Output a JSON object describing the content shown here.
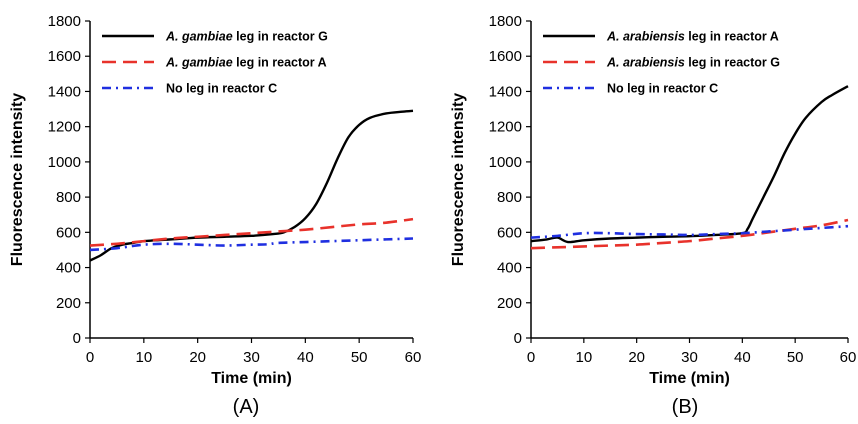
{
  "chart_data": [
    {
      "type": "line",
      "panel_label": "(A)",
      "xlabel": "Time (min)",
      "ylabel": "Fluorescence intensity",
      "xlim": [
        0,
        60
      ],
      "ylim": [
        0,
        1800
      ],
      "x_ticks": [
        "0",
        "10",
        "20",
        "30",
        "40",
        "50",
        "60"
      ],
      "y_ticks": [
        "0",
        "200",
        "400",
        "600",
        "800",
        "1000",
        "1200",
        "1400",
        "1600",
        "1800"
      ],
      "grid": false,
      "legend_position": "top-left",
      "series": [
        {
          "name_italic": "A. gambiae",
          "name_rest": " leg in reactor G",
          "color": "#000000",
          "dash": "solid",
          "x": [
            0,
            2,
            4,
            6,
            8,
            10,
            15,
            20,
            25,
            30,
            34,
            36,
            38,
            40,
            42,
            44,
            46,
            48,
            50,
            52,
            55,
            58,
            60
          ],
          "y": [
            440,
            470,
            510,
            530,
            540,
            550,
            560,
            570,
            575,
            580,
            590,
            600,
            630,
            680,
            760,
            880,
            1020,
            1140,
            1210,
            1250,
            1275,
            1285,
            1290
          ]
        },
        {
          "name_italic": "A. gambiae",
          "name_rest": " leg in reactor A",
          "color": "#e8322b",
          "dash": "long-dash",
          "x": [
            0,
            5,
            10,
            15,
            20,
            25,
            30,
            35,
            40,
            45,
            50,
            55,
            60
          ],
          "y": [
            525,
            535,
            550,
            565,
            575,
            585,
            595,
            605,
            615,
            630,
            645,
            655,
            675
          ]
        },
        {
          "name_italic": "",
          "name_rest": "No leg in reactor C",
          "color": "#1f2fe0",
          "dash": "dash-dot",
          "x": [
            0,
            5,
            10,
            15,
            20,
            25,
            30,
            33,
            35,
            40,
            45,
            50,
            55,
            60
          ],
          "y": [
            500,
            510,
            530,
            535,
            530,
            525,
            530,
            532,
            540,
            545,
            550,
            555,
            560,
            565
          ]
        }
      ]
    },
    {
      "type": "line",
      "panel_label": "(B)",
      "xlabel": "Time (min)",
      "ylabel": "Fluorescence intensity",
      "xlim": [
        0,
        60
      ],
      "ylim": [
        0,
        1800
      ],
      "x_ticks": [
        "0",
        "10",
        "20",
        "30",
        "40",
        "50",
        "60"
      ],
      "y_ticks": [
        "0",
        "200",
        "400",
        "600",
        "800",
        "1000",
        "1200",
        "1400",
        "1600",
        "1800"
      ],
      "grid": false,
      "legend_position": "top-left",
      "series": [
        {
          "name_italic": "A. arabiensis",
          "name_rest": " leg in reactor A",
          "color": "#000000",
          "dash": "solid",
          "x": [
            0,
            3,
            5,
            7,
            10,
            15,
            20,
            25,
            30,
            35,
            40,
            41,
            42,
            44,
            46,
            48,
            50,
            52,
            55,
            57,
            60
          ],
          "y": [
            550,
            560,
            570,
            545,
            555,
            565,
            570,
            575,
            578,
            585,
            595,
            620,
            680,
            800,
            920,
            1050,
            1160,
            1250,
            1340,
            1380,
            1430
          ]
        },
        {
          "name_italic": "A. arabiensis",
          "name_rest": " leg in reactor G",
          "color": "#e8322b",
          "dash": "long-dash",
          "x": [
            0,
            5,
            10,
            15,
            20,
            25,
            30,
            35,
            40,
            45,
            50,
            55,
            60
          ],
          "y": [
            510,
            515,
            520,
            525,
            530,
            540,
            550,
            565,
            580,
            600,
            620,
            640,
            670
          ]
        },
        {
          "name_italic": "",
          "name_rest": "No leg in reactor C",
          "color": "#1f2fe0",
          "dash": "dash-dot",
          "x": [
            0,
            5,
            10,
            15,
            20,
            25,
            30,
            35,
            40,
            45,
            50,
            55,
            60
          ],
          "y": [
            570,
            580,
            595,
            595,
            590,
            588,
            585,
            590,
            595,
            605,
            615,
            625,
            635
          ]
        }
      ]
    }
  ]
}
